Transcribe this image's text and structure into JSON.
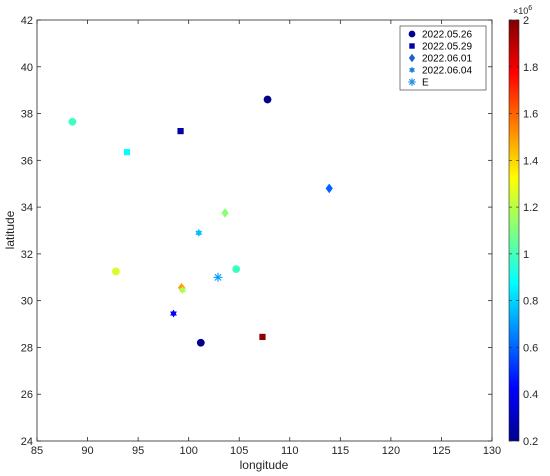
{
  "chart_data": {
    "type": "scatter",
    "xlabel": "longitude",
    "ylabel": "latitude",
    "xlim": [
      85,
      130
    ],
    "ylim": [
      24,
      42
    ],
    "xticks": [
      "85",
      "90",
      "95",
      "100",
      "105",
      "110",
      "115",
      "120",
      "125",
      "130"
    ],
    "yticks": [
      "24",
      "26",
      "28",
      "30",
      "32",
      "34",
      "36",
      "38",
      "40",
      "42"
    ],
    "grid": false,
    "legend_position": "top-right",
    "colorbar": {
      "range": [
        200000,
        2000000
      ],
      "exponent_label": "×10",
      "exponent_power": "6",
      "ticks": [
        "0.2",
        "0.4",
        "0.6",
        "0.8",
        "1",
        "1.2",
        "1.4",
        "1.6",
        "1.8",
        "2"
      ],
      "colormap": "jet"
    },
    "series": [
      {
        "name": "2022.05.26",
        "marker": "circle",
        "points": [
          {
            "x": 107.8,
            "y": 38.6,
            "c": 220000
          },
          {
            "x": 88.5,
            "y": 37.65,
            "c": 980000
          },
          {
            "x": 104.7,
            "y": 31.35,
            "c": 980000
          },
          {
            "x": 92.8,
            "y": 31.25,
            "c": 1250000
          },
          {
            "x": 101.2,
            "y": 28.2,
            "c": 220000
          }
        ]
      },
      {
        "name": "2022.05.29",
        "marker": "square",
        "points": [
          {
            "x": 99.2,
            "y": 37.25,
            "c": 260000
          },
          {
            "x": 93.9,
            "y": 36.35,
            "c": 880000
          },
          {
            "x": 107.3,
            "y": 28.45,
            "c": 1980000
          }
        ]
      },
      {
        "name": "2022.06.01",
        "marker": "diamond",
        "points": [
          {
            "x": 113.9,
            "y": 34.8,
            "c": 600000
          },
          {
            "x": 103.6,
            "y": 33.75,
            "c": 1120000
          },
          {
            "x": 99.3,
            "y": 30.55,
            "c": 1500000
          }
        ]
      },
      {
        "name": "2022.06.04",
        "marker": "hexagram",
        "points": [
          {
            "x": 101.0,
            "y": 32.9,
            "c": 760000
          },
          {
            "x": 99.4,
            "y": 30.45,
            "c": 1180000
          },
          {
            "x": 98.5,
            "y": 29.45,
            "c": 420000
          }
        ]
      },
      {
        "name": "E",
        "marker": "asterisk",
        "points": [
          {
            "x": 102.9,
            "y": 31.0,
            "c": 700000
          }
        ]
      }
    ]
  }
}
